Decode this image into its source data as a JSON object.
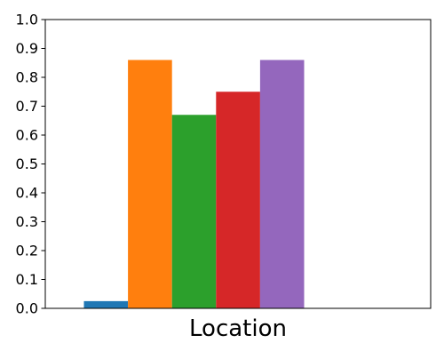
{
  "chart_data": {
    "type": "bar",
    "title": "",
    "xlabel": "Location",
    "ylabel": "",
    "ylim": [
      0,
      1.0
    ],
    "yticks": [
      "0.0",
      "0.1",
      "0.2",
      "0.3",
      "0.4",
      "0.5",
      "0.6",
      "0.7",
      "0.8",
      "0.9",
      "1.0"
    ],
    "grid": false,
    "legend": "none",
    "bars": [
      {
        "value": 0.025,
        "color": "#1f77b4"
      },
      {
        "value": 0.86,
        "color": "#ff7f0e"
      },
      {
        "value": 0.67,
        "color": "#2ca02c"
      },
      {
        "value": 0.75,
        "color": "#d62728"
      },
      {
        "value": 0.86,
        "color": "#9467bd"
      }
    ]
  }
}
